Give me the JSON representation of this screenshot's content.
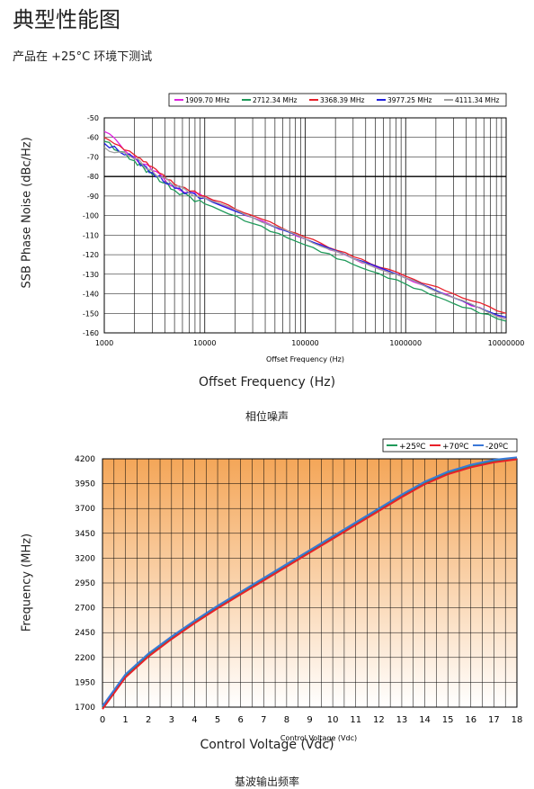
{
  "page": {
    "title": "典型性能图",
    "subtitle": "产品在 +25°C 环境下测试"
  },
  "chart_data": [
    {
      "type": "line",
      "title": "",
      "xlabel": "Offset Frequency (Hz)",
      "xlabel_outer": "Offset Frequency (Hz)",
      "ylabel": "SSB Phase Noise (dBc/Hz)",
      "caption": "相位噪声",
      "xscale": "log",
      "xlim": [
        1000,
        10000000
      ],
      "ylim": [
        -160,
        -50
      ],
      "x_ticks": [
        "1000",
        "10000",
        "100000",
        "1000000",
        "10000000"
      ],
      "y_ticks": [
        "-50",
        "-60",
        "-70",
        "-80",
        "-90",
        "-100",
        "-110",
        "-120",
        "-130",
        "-140",
        "-150",
        "-160"
      ],
      "grid": true,
      "legend_position": "top",
      "x": [
        1000,
        2000,
        3000,
        5000,
        10000,
        30000,
        100000,
        300000,
        1000000,
        3000000,
        10000000
      ],
      "series": [
        {
          "name": "1909.70 MHz",
          "color": "#e020e0",
          "values": [
            -57,
            -70,
            -77,
            -85,
            -91,
            -101,
            -112,
            -122,
            -132,
            -142,
            -153
          ]
        },
        {
          "name": "2712.34 MHz",
          "color": "#1f9a5a",
          "values": [
            -62,
            -72,
            -79,
            -87,
            -94,
            -104,
            -115,
            -125,
            -135,
            -145,
            -154
          ]
        },
        {
          "name": "3368.39 MHz",
          "color": "#e8202a",
          "values": [
            -60,
            -69,
            -75,
            -84,
            -90,
            -100,
            -111,
            -121,
            -131,
            -140,
            -150
          ]
        },
        {
          "name": "3977.25 MHz",
          "color": "#2020e0",
          "values": [
            -63,
            -71,
            -78,
            -86,
            -91,
            -101,
            -112,
            -122,
            -132,
            -142,
            -152
          ]
        },
        {
          "name": "4111.34 MHz",
          "color": "#a0a0a0",
          "values": [
            -65,
            -71,
            -77,
            -85,
            -91,
            -101,
            -112,
            -122,
            -132,
            -142,
            -153
          ]
        }
      ]
    },
    {
      "type": "line",
      "title": "",
      "xlabel": "Control Voltage (Vdc)",
      "xlabel_outer": "Control Voltage (Vdc)",
      "ylabel": "Frequency (MHz)",
      "caption": "基波输出频率",
      "xlim": [
        0,
        18
      ],
      "ylim": [
        1700,
        4200
      ],
      "x_ticks": [
        "0",
        "1",
        "2",
        "3",
        "4",
        "5",
        "6",
        "7",
        "8",
        "9",
        "10",
        "11",
        "12",
        "13",
        "14",
        "15",
        "16",
        "17",
        "18"
      ],
      "y_ticks": [
        "4200",
        "3950",
        "3700",
        "3450",
        "3200",
        "2950",
        "2700",
        "2450",
        "2200",
        "1950",
        "1700"
      ],
      "grid": true,
      "legend_position": "top-right",
      "x": [
        0,
        1,
        2,
        3,
        4,
        5,
        6,
        7,
        8,
        9,
        10,
        11,
        12,
        13,
        14,
        15,
        16,
        17,
        18
      ],
      "series": [
        {
          "name": "+25ºC",
          "color": "#1f9a5a",
          "values": [
            1700,
            2020,
            2230,
            2400,
            2560,
            2710,
            2850,
            2990,
            3130,
            3270,
            3410,
            3550,
            3690,
            3830,
            3960,
            4060,
            4130,
            4180,
            4210
          ]
        },
        {
          "name": "+70ºC",
          "color": "#e8202a",
          "values": [
            1680,
            2000,
            2210,
            2385,
            2545,
            2695,
            2835,
            2975,
            3115,
            3255,
            3395,
            3535,
            3675,
            3815,
            3945,
            4045,
            4115,
            4165,
            4195
          ]
        },
        {
          "name": "-20ºC",
          "color": "#3a78d8",
          "values": [
            1710,
            2030,
            2240,
            2410,
            2570,
            2720,
            2860,
            3000,
            3140,
            3280,
            3420,
            3560,
            3700,
            3840,
            3970,
            4070,
            4140,
            4190,
            4215
          ]
        }
      ]
    }
  ]
}
